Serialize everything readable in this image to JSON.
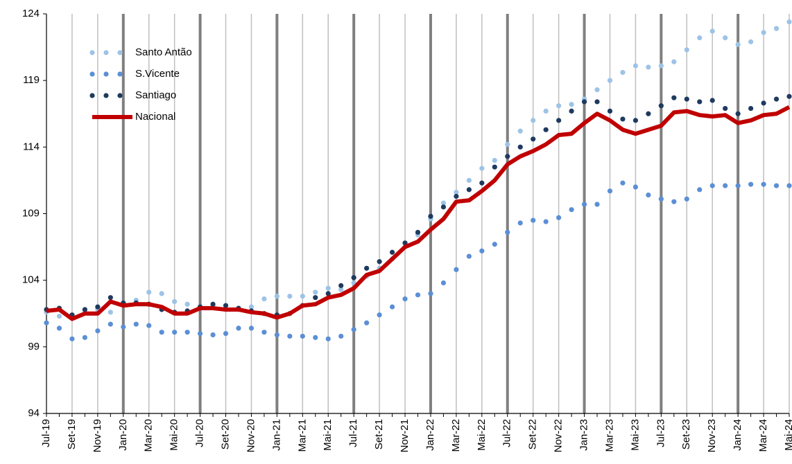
{
  "chart_data": {
    "type": "line",
    "categories": [
      "Jul-19",
      null,
      "Set-19",
      null,
      "Nov-19",
      null,
      "Jan-20",
      null,
      "Mar-20",
      null,
      "Mai-20",
      null,
      "Jul-20",
      null,
      "Set-20",
      null,
      "Nov-20",
      null,
      "Jan-21",
      null,
      "Mar-21",
      null,
      "Mai-21",
      null,
      "Jul-21",
      null,
      "Set-21",
      null,
      "Nov-21",
      null,
      "Jan-22",
      null,
      "Mar-22",
      null,
      "Mai-22",
      null,
      "Jul-22",
      null,
      "Set-22",
      null,
      "Nov-22",
      null,
      "Jan-23",
      null,
      "Mar-23",
      null,
      "Mai-23",
      null,
      "Jul-23",
      null,
      "Set-23",
      null,
      "Nov-23",
      null,
      "Jan-24",
      null,
      "Mar-24",
      null,
      "Mai-24"
    ],
    "series": [
      {
        "name": "Santo Antão",
        "color": "#9dc3e6",
        "style": "dots",
        "values": [
          101.6,
          101.3,
          101.4,
          101.6,
          101.8,
          101.6,
          102.3,
          102.5,
          103.1,
          103.0,
          102.4,
          102.2,
          102.0,
          102.1,
          101.8,
          101.8,
          102.0,
          102.6,
          102.8,
          102.8,
          102.8,
          103.1,
          103.4,
          103.3,
          103.8,
          104.3,
          104.9,
          105.6,
          106.5,
          107.4,
          108.6,
          109.8,
          110.6,
          111.5,
          112.4,
          113.0,
          114.2,
          115.2,
          116.0,
          116.7,
          117.1,
          117.2,
          117.6,
          118.3,
          119.0,
          119.6,
          120.1,
          120.0,
          120.1,
          120.4,
          121.3,
          122.2,
          122.7,
          122.2,
          121.7,
          121.9,
          122.6,
          122.9,
          123.4
        ]
      },
      {
        "name": "S.Vicente",
        "color": "#5b8fd6",
        "style": "dots",
        "values": [
          100.8,
          100.4,
          99.6,
          99.7,
          100.2,
          100.7,
          100.5,
          100.7,
          100.6,
          100.1,
          100.1,
          100.1,
          100.0,
          99.9,
          100.0,
          100.4,
          100.4,
          100.1,
          99.9,
          99.8,
          99.8,
          99.7,
          99.6,
          99.8,
          100.3,
          100.8,
          101.4,
          102.0,
          102.6,
          102.9,
          103.0,
          103.8,
          104.8,
          105.8,
          106.2,
          106.7,
          107.6,
          108.3,
          108.5,
          108.4,
          108.7,
          109.3,
          109.7,
          109.7,
          110.7,
          111.3,
          111.0,
          110.4,
          110.1,
          109.9,
          110.1,
          110.8,
          111.1,
          111.1,
          111.1,
          111.2,
          111.2,
          111.1,
          111.1
        ]
      },
      {
        "name": "Santiago",
        "color": "#1f3a5f",
        "style": "dots",
        "values": [
          101.8,
          101.9,
          101.4,
          101.8,
          102.0,
          102.7,
          102.3,
          102.3,
          102.2,
          101.8,
          101.6,
          101.7,
          102.0,
          102.2,
          102.1,
          101.9,
          101.7,
          101.5,
          101.4,
          101.5,
          102.1,
          102.7,
          103.0,
          103.6,
          104.2,
          104.9,
          105.4,
          106.1,
          106.8,
          107.6,
          108.8,
          109.5,
          110.3,
          110.8,
          111.3,
          112.5,
          113.3,
          114.0,
          114.6,
          115.3,
          116.0,
          116.7,
          117.4,
          117.4,
          116.7,
          116.1,
          116.0,
          116.5,
          117.1,
          117.7,
          117.6,
          117.4,
          117.5,
          116.9,
          116.5,
          116.9,
          117.3,
          117.6,
          117.8
        ]
      },
      {
        "name": "Nacional",
        "color": "#c00000",
        "style": "line",
        "values": [
          101.7,
          101.8,
          101.1,
          101.5,
          101.5,
          102.4,
          102.1,
          102.2,
          102.2,
          102.0,
          101.5,
          101.5,
          101.9,
          101.9,
          101.8,
          101.8,
          101.6,
          101.5,
          101.2,
          101.5,
          102.1,
          102.2,
          102.7,
          102.9,
          103.4,
          104.4,
          104.7,
          105.6,
          106.5,
          106.9,
          107.8,
          108.6,
          109.9,
          110.0,
          110.7,
          111.5,
          112.7,
          113.3,
          113.7,
          114.2,
          114.9,
          115.0,
          115.8,
          116.5,
          116.0,
          115.3,
          115.0,
          115.3,
          115.6,
          116.6,
          116.7,
          116.4,
          116.3,
          116.4,
          115.8,
          116.0,
          116.4,
          116.5,
          117.0
        ]
      }
    ],
    "ylim": [
      94,
      124
    ],
    "yticks": [
      94,
      99,
      104,
      109,
      114,
      119,
      124
    ],
    "grid": true,
    "legend": "top-left"
  }
}
